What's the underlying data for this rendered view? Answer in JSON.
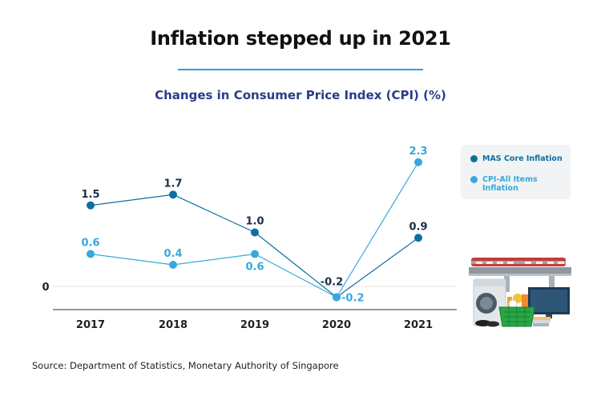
{
  "header": {
    "title": "Inflation stepped up in 2021",
    "subtitle": "Changes in Consumer Price Index (CPI) (%)"
  },
  "source_note": "Source: Department of Statistics, Monetary Authority of Singapore",
  "colors": {
    "core": "#0d6fa0",
    "all_items": "#36a8dc",
    "title_rule": "#2aa2d8",
    "subtitle": "#2a3c8a"
  },
  "chart_data": {
    "type": "line",
    "categories": [
      "2017",
      "2018",
      "2019",
      "2020",
      "2021"
    ],
    "series": [
      {
        "name": "MAS Core Inflation",
        "values": [
          1.5,
          1.7,
          1.0,
          -0.2,
          0.9
        ],
        "labels": [
          "1.5",
          "1.7",
          "1.0",
          "-0.2",
          "0.9"
        ]
      },
      {
        "name": "CPI-All Items Inflation",
        "values": [
          0.6,
          0.4,
          0.6,
          -0.2,
          2.3
        ],
        "labels": [
          "0.6",
          "0.4",
          "0.6",
          "-0.2",
          "2.3"
        ]
      }
    ],
    "y_ticks": [
      "0"
    ],
    "ylim": [
      -0.4,
      2.5
    ],
    "legend": "right",
    "grid": false
  },
  "legend_items": [
    {
      "label": "MAS Core Inflation"
    },
    {
      "label": "CPI-All Items Inflation"
    }
  ],
  "illustration": {
    "icon": "household-goods-and-train-illustration"
  }
}
